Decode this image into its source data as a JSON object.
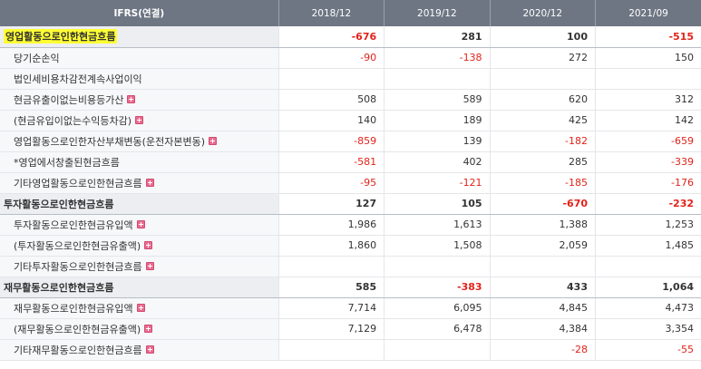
{
  "table": {
    "header": {
      "label": "IFRS(연결)",
      "periods": [
        "2018/12",
        "2019/12",
        "2020/12",
        "2021/09"
      ]
    },
    "rows": [
      {
        "label": "영업활동으로인한현금흐름",
        "values": [
          "-676",
          "281",
          "100",
          "-515"
        ],
        "main": true,
        "highlight": true,
        "expand": false
      },
      {
        "label": "당기순손익",
        "values": [
          "-90",
          "-138",
          "272",
          "150"
        ],
        "main": false,
        "highlight": false,
        "expand": false
      },
      {
        "label": "법인세비용차감전계속사업이익",
        "values": [
          "",
          "",
          "",
          ""
        ],
        "main": false,
        "highlight": false,
        "expand": false
      },
      {
        "label": "현금유출이없는비용등가산",
        "values": [
          "508",
          "589",
          "620",
          "312"
        ],
        "main": false,
        "highlight": false,
        "expand": true
      },
      {
        "label": "(현금유입이없는수익등차감)",
        "values": [
          "140",
          "189",
          "425",
          "142"
        ],
        "main": false,
        "highlight": false,
        "expand": true
      },
      {
        "label": "영업활동으로인한자산부채변동(운전자본변동)",
        "values": [
          "-859",
          "139",
          "-182",
          "-659"
        ],
        "main": false,
        "highlight": false,
        "expand": true
      },
      {
        "label": "*영업에서창출된현금흐름",
        "values": [
          "-581",
          "402",
          "285",
          "-339"
        ],
        "main": false,
        "highlight": false,
        "expand": false
      },
      {
        "label": "기타영업활동으로인한현금흐름",
        "values": [
          "-95",
          "-121",
          "-185",
          "-176"
        ],
        "main": false,
        "highlight": false,
        "expand": true
      },
      {
        "label": "투자활동으로인한현금흐름",
        "values": [
          "127",
          "105",
          "-670",
          "-232"
        ],
        "main": true,
        "highlight": false,
        "expand": false
      },
      {
        "label": "투자활동으로인한현금유입액",
        "values": [
          "1,986",
          "1,613",
          "1,388",
          "1,253"
        ],
        "main": false,
        "highlight": false,
        "expand": true
      },
      {
        "label": "(투자활동으로인한현금유출액)",
        "values": [
          "1,860",
          "1,508",
          "2,059",
          "1,485"
        ],
        "main": false,
        "highlight": false,
        "expand": true
      },
      {
        "label": "기타투자활동으로인한현금흐름",
        "values": [
          "",
          "",
          "",
          ""
        ],
        "main": false,
        "highlight": false,
        "expand": true
      },
      {
        "label": "재무활동으로인한현금흐름",
        "values": [
          "585",
          "-383",
          "433",
          "1,064"
        ],
        "main": true,
        "highlight": false,
        "expand": false
      },
      {
        "label": "재무활동으로인한현금유입액",
        "values": [
          "7,714",
          "6,095",
          "4,845",
          "4,473"
        ],
        "main": false,
        "highlight": false,
        "expand": true
      },
      {
        "label": "(재무활동으로인한현금유출액)",
        "values": [
          "7,129",
          "6,478",
          "4,384",
          "3,354"
        ],
        "main": false,
        "highlight": false,
        "expand": true
      },
      {
        "label": "기타재무활동으로인한현금흐름",
        "values": [
          "",
          "",
          "-28",
          "-55"
        ],
        "main": false,
        "highlight": false,
        "expand": true
      }
    ]
  },
  "colors": {
    "header_bg": "#6e7683",
    "negative": "#e2231a",
    "highlight": "#ffff33",
    "expand_icon": "#ea6b8e"
  },
  "icons": {
    "expand": "plus-icon"
  }
}
